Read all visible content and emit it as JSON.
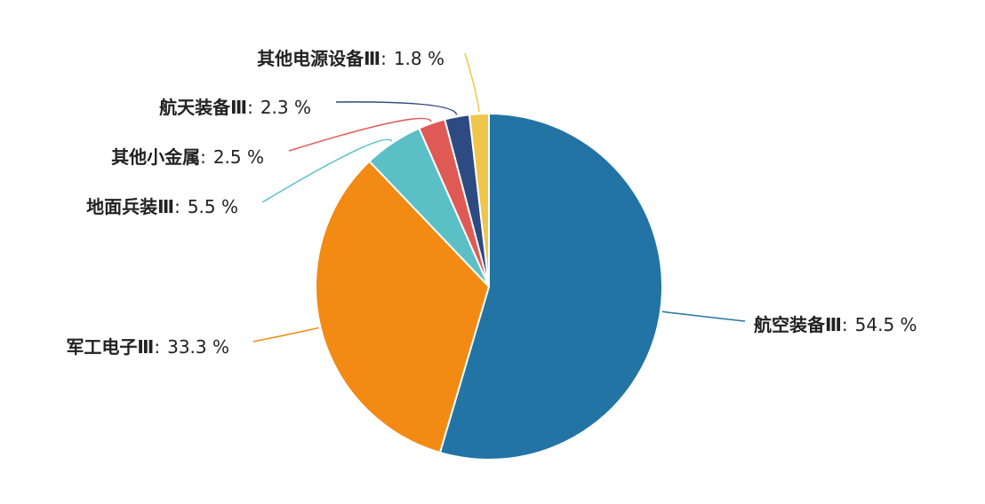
{
  "chart_data": {
    "type": "pie",
    "categories": [
      "航空装备Ⅲ",
      "军工电子Ⅲ",
      "地面兵装Ⅲ",
      "其他小金属",
      "航天装备Ⅲ",
      "其他电源设备Ⅲ"
    ],
    "values": [
      54.5,
      33.3,
      5.5,
      2.5,
      2.3,
      1.8
    ],
    "value_labels": [
      "54.5 %",
      "33.3 %",
      "5.5 %",
      "2.5 %",
      "2.3 %",
      "1.8 %"
    ],
    "label_separator": ":",
    "colors": [
      "#2274a5",
      "#f28a14",
      "#5bbfc6",
      "#e05a55",
      "#2e4a82",
      "#f0c64a"
    ]
  }
}
